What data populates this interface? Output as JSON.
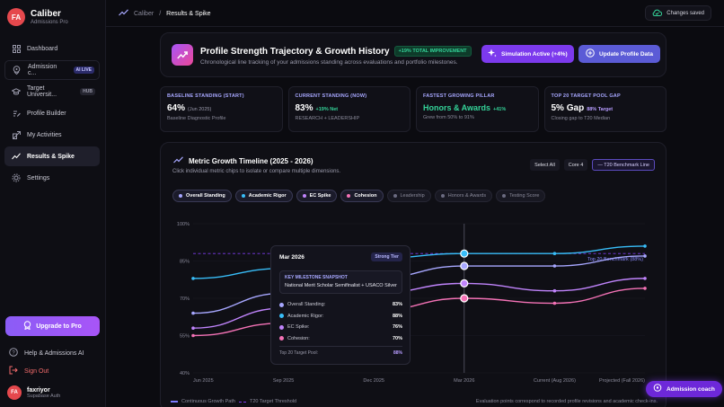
{
  "brand": {
    "initials": "FA",
    "name": "Caliber",
    "sub": "Admissions Pro"
  },
  "sidebar": {
    "items": [
      {
        "label": "Dashboard",
        "icon": "grid-icon",
        "badge": ""
      },
      {
        "label": "Admission c...",
        "icon": "location-icon",
        "badge": "AI LIVE"
      },
      {
        "label": "Target Universit...",
        "icon": "graduation-cap-icon",
        "badge": "HUB"
      },
      {
        "label": "Profile Builder",
        "icon": "edit-icon",
        "badge": ""
      },
      {
        "label": "My Activities",
        "icon": "activity-icon",
        "badge": ""
      },
      {
        "label": "Results & Spike",
        "icon": "trend-icon",
        "badge": ""
      },
      {
        "label": "Settings",
        "icon": "gear-icon",
        "badge": ""
      }
    ],
    "upgrade": "Upgrade to Pro",
    "help": "Help & Admissions AI",
    "signout": "Sign Out",
    "user": {
      "initials": "FA",
      "name": "faxriyor",
      "sub": "Supabase Auth"
    }
  },
  "topbar": {
    "crumb_root": "Caliber",
    "crumb_sep": "/",
    "crumb_current": "Results & Spike",
    "saved": "Changes saved"
  },
  "header": {
    "title": "Profile Strength Trajectory & Growth History",
    "badge": "+19% TOTAL IMPROVEMENT",
    "subtitle": "Chronological line tracking of your admissions standing across evaluations and portfolio milestones.",
    "sim_button": "Simulation Active (+4%)",
    "update_button": "Update Profile Data"
  },
  "stats": [
    {
      "label": "BASELINE STANDING (START)",
      "value": "64%",
      "tag": "(Jun 2025)",
      "sub": "Baseline Diagnostic Profile"
    },
    {
      "label": "CURRENT STANDING (NOW)",
      "value": "83%",
      "tag": "+19% Net",
      "sub": "RESEARCH + LEADERSHIP"
    },
    {
      "label": "FASTEST GROWING PILLAR",
      "value": "Honors & Awards",
      "tag": "+41%",
      "sub": "Grew from 50% to 91%"
    },
    {
      "label": "TOP 20 TARGET POOL GAP",
      "value": "5% Gap",
      "tag": "88% Target",
      "sub": "Closing gap to T20 Median"
    }
  ],
  "timeline": {
    "title": "Metric Growth Timeline (2025 - 2026)",
    "subtitle": "Click individual metric chips to isolate or compare multiple dimensions.",
    "controls": [
      "Select All",
      "Core 4",
      "— T20 Benchmark Line"
    ],
    "chips": [
      {
        "label": "Overall Standing",
        "color": "#a7a7ff",
        "on": true
      },
      {
        "label": "Academic Rigor",
        "color": "#38bdf8",
        "on": true
      },
      {
        "label": "EC Spike",
        "color": "#c084fc",
        "on": true
      },
      {
        "label": "Cohesion",
        "color": "#f472b6",
        "on": true
      },
      {
        "label": "Leadership",
        "color": "#6b6b80",
        "on": false
      },
      {
        "label": "Honors & Awards",
        "color": "#6b6b80",
        "on": false
      },
      {
        "label": "Testing Score",
        "color": "#6b6b80",
        "on": false
      }
    ],
    "benchmark_label": "Top 20 Benchmark (88%)",
    "footer_left": [
      {
        "label": "Continuous Growth Path",
        "color": "#7c7cff"
      },
      {
        "label": "T20 Target Threshold",
        "color": "#7c3aed"
      }
    ],
    "footer_right": "Evaluation points correspond to recorded profile revisions and academic check-ins."
  },
  "chart_data": {
    "type": "line",
    "x": [
      "Jun 2025",
      "Sep 2025",
      "Dec 2025",
      "Mar 2026",
      "Current (Aug 2026)",
      "Projected (Fall 2026)"
    ],
    "ylim": [
      40,
      100
    ],
    "y_ticks": [
      "40%",
      "55%",
      "70%",
      "85%",
      "100%"
    ],
    "benchmark": 88,
    "series": [
      {
        "name": "Academic Rigor",
        "color": "#38bdf8",
        "values": [
          78,
          82,
          86,
          88,
          88,
          91
        ]
      },
      {
        "name": "Overall Standing",
        "color": "#a7a7ff",
        "values": [
          64,
          72,
          78,
          83,
          83,
          87
        ]
      },
      {
        "name": "EC Spike",
        "color": "#c084fc",
        "values": [
          58,
          66,
          72,
          76,
          73,
          78
        ]
      },
      {
        "name": "Cohesion",
        "color": "#f472b6",
        "values": [
          55,
          60,
          65,
          70,
          68,
          74
        ]
      }
    ],
    "highlight_index": 3
  },
  "tooltip": {
    "date": "Mar 2026",
    "tier": "Strong Tier",
    "milestone_title": "KEY MILESTONE SNAPSHOT",
    "milestone_text": "National Merit Scholar Semifinalist + USACO Silver",
    "rows": [
      {
        "label": "Overall Standing:",
        "value": "83%",
        "color": "#a7a7ff"
      },
      {
        "label": "Academic Rigor:",
        "value": "88%",
        "color": "#38bdf8"
      },
      {
        "label": "EC Spike:",
        "value": "76%",
        "color": "#c084fc"
      },
      {
        "label": "Cohesion:",
        "value": "70%",
        "color": "#f472b6"
      }
    ],
    "pool_label": "Top 20 Target Pool:",
    "pool_value": "88%"
  },
  "coach": "Admission coach"
}
